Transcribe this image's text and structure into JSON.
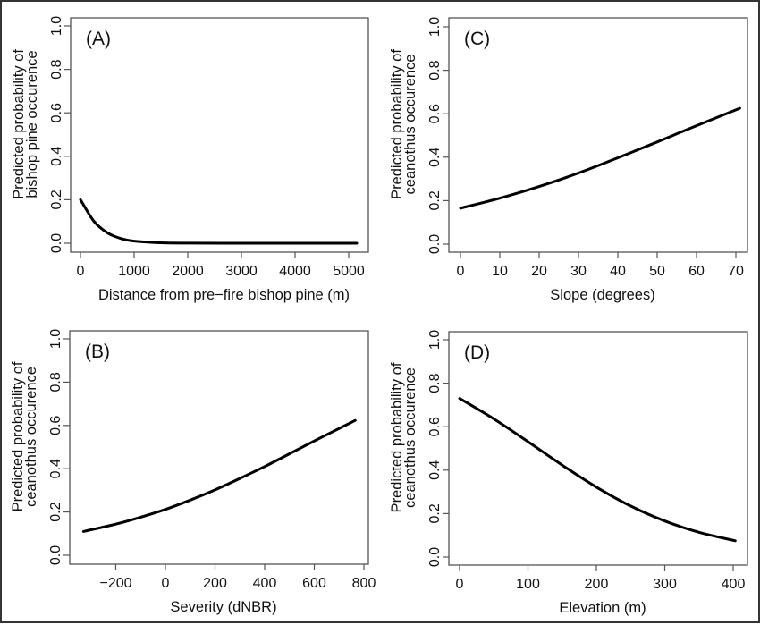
{
  "chart_data": [
    {
      "type": "line",
      "panel_label": "(A)",
      "xlabel": "Distance from pre−fire bishop pine (m)",
      "ylabel": [
        "Predicted probability of",
        "bishop pine occurence"
      ],
      "xticks": [
        "0",
        "1000",
        "2000",
        "3000",
        "4000",
        "5000"
      ],
      "yticks": [
        "0.0",
        "0.2",
        "0.4",
        "0.6",
        "0.8",
        "1.0"
      ],
      "xlim": [
        0,
        5150
      ],
      "ylim": [
        0,
        1
      ],
      "x": [
        0,
        250,
        500,
        750,
        1000,
        1500,
        2000,
        3000,
        4000,
        5150
      ],
      "y": [
        0.2,
        0.101,
        0.048,
        0.022,
        0.01,
        0.002,
        0.0005,
        0.0,
        0.0,
        0.0
      ]
    },
    {
      "type": "line",
      "panel_label": "(C)",
      "xlabel": "Slope (degrees)",
      "ylabel": [
        "Predicted probability of",
        "ceanothus occurence"
      ],
      "xticks": [
        "0",
        "10",
        "20",
        "30",
        "40",
        "50",
        "60",
        "70"
      ],
      "yticks": [
        "0.0",
        "0.2",
        "0.4",
        "0.6",
        "0.8",
        "1.0"
      ],
      "xlim": [
        0,
        71
      ],
      "ylim": [
        0,
        1
      ],
      "x": [
        0,
        10,
        20,
        30,
        40,
        50,
        60,
        71
      ],
      "y": [
        0.165,
        0.211,
        0.265,
        0.327,
        0.397,
        0.47,
        0.545,
        0.625
      ]
    },
    {
      "type": "line",
      "panel_label": "(B)",
      "xlabel": "Severity (dNBR)",
      "ylabel": [
        "Predicted probability of",
        "ceanothus occurence"
      ],
      "xticks": [
        "−200",
        "0",
        "200",
        "400",
        "600",
        "800"
      ],
      "yticks": [
        "0.0",
        "0.2",
        "0.4",
        "0.6",
        "0.8",
        "1.0"
      ],
      "xlim": [
        -330,
        765
      ],
      "ylim": [
        0,
        1
      ],
      "x": [
        -330,
        -200,
        -100,
        0,
        100,
        200,
        300,
        400,
        500,
        600,
        700,
        765
      ],
      "y": [
        0.11,
        0.144,
        0.176,
        0.212,
        0.255,
        0.302,
        0.355,
        0.41,
        0.469,
        0.528,
        0.586,
        0.623
      ]
    },
    {
      "type": "line",
      "panel_label": "(D)",
      "xlabel": "Elevation (m)",
      "ylabel": [
        "Predicted probability of",
        "ceanothus occurence"
      ],
      "xticks": [
        "0",
        "100",
        "200",
        "300",
        "400"
      ],
      "yticks": [
        "0.0",
        "0.2",
        "0.4",
        "0.6",
        "0.8",
        "1.0"
      ],
      "xlim": [
        0,
        403
      ],
      "ylim": [
        0,
        1
      ],
      "x": [
        0,
        50,
        100,
        150,
        200,
        250,
        300,
        350,
        403
      ],
      "y": [
        0.73,
        0.636,
        0.531,
        0.423,
        0.322,
        0.235,
        0.166,
        0.114,
        0.075
      ]
    }
  ],
  "colors": {
    "line": "#000000",
    "frame": "#333333",
    "axis": "#555555"
  }
}
